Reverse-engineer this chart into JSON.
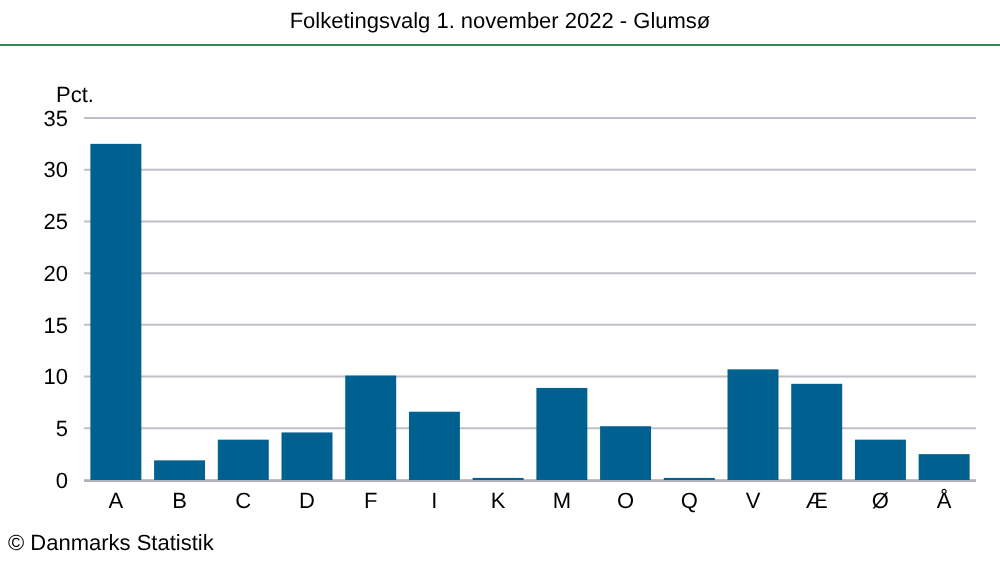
{
  "chart_data": {
    "type": "bar",
    "title": "Folketingsvalg 1. november 2022 - Glumsø",
    "ylabel": "Pct.",
    "annotations": [
      "© Danmarks Statistik"
    ],
    "categories": [
      "A",
      "B",
      "C",
      "D",
      "F",
      "I",
      "K",
      "M",
      "O",
      "Q",
      "V",
      "Æ",
      "Ø",
      "Å"
    ],
    "values": [
      32.5,
      1.9,
      3.9,
      4.6,
      10.1,
      6.6,
      0.2,
      8.9,
      5.2,
      0.2,
      10.7,
      9.3,
      3.9,
      2.5
    ],
    "color": "#006090",
    "ylim": [
      0,
      35
    ],
    "yticks": [
      0,
      5,
      10,
      15,
      20,
      25,
      30,
      35
    ],
    "grid": "y"
  }
}
